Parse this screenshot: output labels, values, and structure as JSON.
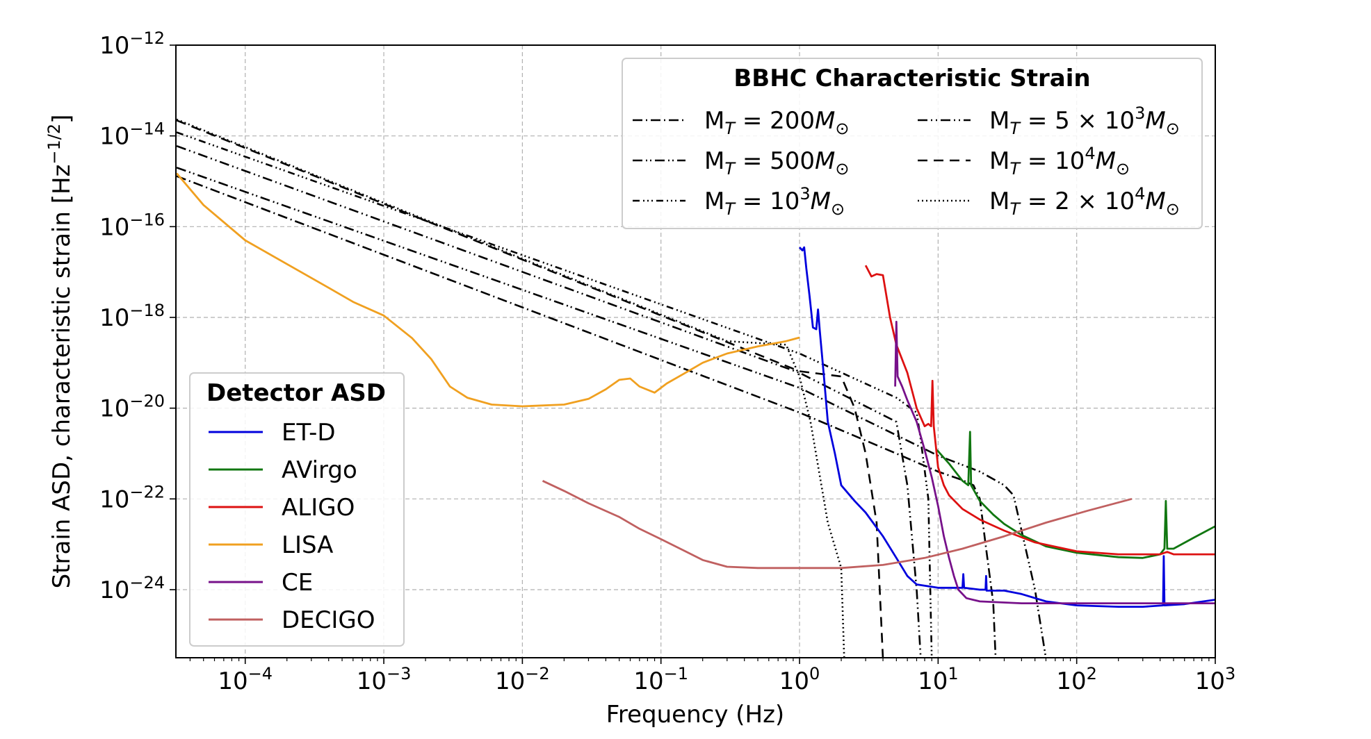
{
  "chart_data": {
    "type": "line",
    "x_scale": "log",
    "y_scale": "log",
    "xlim": [
      3.16e-05,
      1000
    ],
    "ylim": [
      3.16e-26,
      1e-12
    ],
    "xlabel": "Frequency (Hz)",
    "ylabel": "Strain ASD, characteristic strain [Hz",
    "ylabel_exp": "−1/2",
    "ylabel_close": "]",
    "grid": true,
    "x_ticks": [
      {
        "value": 0.0001,
        "base": "10",
        "exp": "−4"
      },
      {
        "value": 0.001,
        "base": "10",
        "exp": "−3"
      },
      {
        "value": 0.01,
        "base": "10",
        "exp": "−2"
      },
      {
        "value": 0.1,
        "base": "10",
        "exp": "−1"
      },
      {
        "value": 1,
        "base": "10",
        "exp": "0"
      },
      {
        "value": 10,
        "base": "10",
        "exp": "1"
      },
      {
        "value": 100,
        "base": "10",
        "exp": "2"
      },
      {
        "value": 1000,
        "base": "10",
        "exp": "3"
      }
    ],
    "y_ticks": [
      {
        "value": 1e-12,
        "base": "10",
        "exp": "−12"
      },
      {
        "value": 1e-14,
        "base": "10",
        "exp": "−14"
      },
      {
        "value": 1e-16,
        "base": "10",
        "exp": "−16"
      },
      {
        "value": 1e-18,
        "base": "10",
        "exp": "−18"
      },
      {
        "value": 1e-20,
        "base": "10",
        "exp": "−20"
      },
      {
        "value": 1e-22,
        "base": "10",
        "exp": "−22"
      },
      {
        "value": 1e-24,
        "base": "10",
        "exp": "−24"
      }
    ],
    "legend_detectors": {
      "title": "Detector ASD",
      "placement": "lower-left"
    },
    "legend_bbhc": {
      "title": "BBHC Characteristic Strain",
      "placement": "upper-right"
    },
    "detector_series": [
      {
        "name": "ET-D",
        "color": "#0000dd",
        "points": [
          [
            1.0,
            3.5e-17
          ],
          [
            1.05,
            3e-17
          ],
          [
            1.08,
            3.5e-17
          ],
          [
            1.12,
            1.2e-17
          ],
          [
            1.18,
            3e-18
          ],
          [
            1.25,
            6e-19
          ],
          [
            1.32,
            5.5e-19
          ],
          [
            1.36,
            1.5e-18
          ],
          [
            1.4,
            5e-19
          ],
          [
            1.5,
            5e-20
          ],
          [
            1.6,
            5e-21
          ],
          [
            1.8,
            1e-21
          ],
          [
            2.0,
            2e-22
          ],
          [
            2.5,
            9e-23
          ],
          [
            3,
            5e-23
          ],
          [
            4,
            1.5e-23
          ],
          [
            5,
            5e-24
          ],
          [
            6,
            2e-24
          ],
          [
            7,
            1.3e-24
          ],
          [
            10,
            1.1e-24
          ],
          [
            15,
            1.1e-24
          ],
          [
            15.2,
            2.2e-24
          ],
          [
            15.4,
            1.1e-24
          ],
          [
            20,
            1e-24
          ],
          [
            22,
            1e-24
          ],
          [
            22.2,
            2e-24
          ],
          [
            22.4,
            9.5e-25
          ],
          [
            30,
            9.5e-25
          ],
          [
            40,
            8e-25
          ],
          [
            60,
            5.5e-25
          ],
          [
            100,
            4.5e-25
          ],
          [
            200,
            4.2e-25
          ],
          [
            300,
            4.2e-25
          ],
          [
            420,
            4.5e-25
          ],
          [
            425,
            5.5e-24
          ],
          [
            430,
            4.5e-25
          ],
          [
            600,
            4.8e-25
          ],
          [
            1000,
            6e-25
          ]
        ]
      },
      {
        "name": "AVirgo",
        "color": "#117711",
        "points": [
          [
            9.8,
            1.2e-21
          ],
          [
            12,
            6e-22
          ],
          [
            15,
            2.5e-22
          ],
          [
            16.5,
            2e-22
          ],
          [
            17,
            3e-21
          ],
          [
            17.3,
            2e-22
          ],
          [
            20,
            9e-23
          ],
          [
            25,
            4.5e-23
          ],
          [
            30,
            2.8e-23
          ],
          [
            40,
            1.6e-23
          ],
          [
            60,
            9e-24
          ],
          [
            100,
            6.5e-24
          ],
          [
            200,
            5.2e-24
          ],
          [
            300,
            5e-24
          ],
          [
            400,
            6e-24
          ],
          [
            430,
            8e-24
          ],
          [
            440,
            9e-23
          ],
          [
            450,
            8e-24
          ],
          [
            500,
            8e-24
          ],
          [
            700,
            1.4e-23
          ],
          [
            1000,
            2.5e-23
          ]
        ]
      },
      {
        "name": "ALIGO",
        "color": "#dd1111",
        "points": [
          [
            3.0,
            1.4e-17
          ],
          [
            3.3,
            8e-18
          ],
          [
            3.6,
            9e-18
          ],
          [
            4.0,
            8.5e-18
          ],
          [
            4.5,
            1e-18
          ],
          [
            5,
            2.5e-19
          ],
          [
            6,
            6e-20
          ],
          [
            7,
            1e-20
          ],
          [
            8,
            4e-21
          ],
          [
            8.5,
            4.5e-21
          ],
          [
            8.9,
            4e-21
          ],
          [
            9.1,
            4e-20
          ],
          [
            9.3,
            4e-21
          ],
          [
            10,
            5e-22
          ],
          [
            11,
            2e-22
          ],
          [
            12,
            1.2e-22
          ],
          [
            15,
            6e-23
          ],
          [
            20,
            3.5e-23
          ],
          [
            30,
            2e-23
          ],
          [
            50,
            1.1e-23
          ],
          [
            100,
            7e-24
          ],
          [
            200,
            6e-24
          ],
          [
            400,
            6e-24
          ],
          [
            450,
            6.8e-24
          ],
          [
            500,
            6e-24
          ],
          [
            1000,
            6e-24
          ]
        ]
      },
      {
        "name": "LISA",
        "color": "#f0a020",
        "points": [
          [
            3.2e-05,
            1.5e-15
          ],
          [
            5e-05,
            3e-16
          ],
          [
            0.0001,
            5e-17
          ],
          [
            0.0002,
            1.5e-17
          ],
          [
            0.0004,
            4.5e-18
          ],
          [
            0.0006,
            2.2e-18
          ],
          [
            0.001,
            1.1e-18
          ],
          [
            0.0016,
            3.5e-19
          ],
          [
            0.0022,
            1.2e-19
          ],
          [
            0.003,
            3e-20
          ],
          [
            0.004,
            1.7e-20
          ],
          [
            0.006,
            1.2e-20
          ],
          [
            0.01,
            1.1e-20
          ],
          [
            0.02,
            1.2e-20
          ],
          [
            0.03,
            1.6e-20
          ],
          [
            0.04,
            2.6e-20
          ],
          [
            0.05,
            4.2e-20
          ],
          [
            0.06,
            4.5e-20
          ],
          [
            0.07,
            3e-20
          ],
          [
            0.09,
            2.2e-20
          ],
          [
            0.11,
            3.5e-20
          ],
          [
            0.15,
            6e-20
          ],
          [
            0.2,
            1e-19
          ],
          [
            0.3,
            1.6e-19
          ],
          [
            0.5,
            2.3e-19
          ],
          [
            0.8,
            3e-19
          ],
          [
            1.0,
            3.6e-19
          ]
        ]
      },
      {
        "name": "CE",
        "color": "#77118a",
        "points": [
          [
            4.9,
            3e-20
          ],
          [
            5.0,
            8e-19
          ],
          [
            5.1,
            5e-20
          ],
          [
            5.5,
            3e-20
          ],
          [
            6,
            1.5e-20
          ],
          [
            7,
            5e-21
          ],
          [
            8,
            1.2e-21
          ],
          [
            9,
            3e-22
          ],
          [
            10,
            7e-23
          ],
          [
            11,
            1.5e-23
          ],
          [
            12,
            5e-24
          ],
          [
            13,
            2e-24
          ],
          [
            14,
            1e-24
          ],
          [
            16,
            6.5e-25
          ],
          [
            20,
            5.5e-25
          ],
          [
            40,
            5e-25
          ],
          [
            100,
            5e-25
          ],
          [
            300,
            5e-25
          ],
          [
            1000,
            5e-25
          ]
        ]
      },
      {
        "name": "DECIGO",
        "color": "#c06060",
        "points": [
          [
            0.014,
            2.5e-22
          ],
          [
            0.02,
            1.5e-22
          ],
          [
            0.03,
            8e-23
          ],
          [
            0.05,
            4e-23
          ],
          [
            0.07,
            2.2e-23
          ],
          [
            0.1,
            1.3e-23
          ],
          [
            0.15,
            7e-24
          ],
          [
            0.2,
            4.5e-24
          ],
          [
            0.3,
            3.2e-24
          ],
          [
            0.5,
            3e-24
          ],
          [
            1,
            3e-24
          ],
          [
            2,
            3e-24
          ],
          [
            4,
            3.5e-24
          ],
          [
            8,
            5e-24
          ],
          [
            15,
            8e-24
          ],
          [
            30,
            1.5e-23
          ],
          [
            60,
            3e-23
          ],
          [
            120,
            5.5e-23
          ],
          [
            250,
            1e-22
          ]
        ]
      }
    ],
    "bbhc_series": [
      {
        "name": "200",
        "label_value": "200",
        "dash": "14,5,2,5",
        "points": [
          [
            3.2e-05,
            1.3e-15
          ],
          [
            1,
            8e-21
          ],
          [
            5,
            1e-21
          ],
          [
            10,
            4e-22
          ],
          [
            15,
            2.6e-22
          ],
          [
            18,
            2e-22
          ],
          [
            20,
            1e-22
          ],
          [
            22,
            1e-23
          ],
          [
            25,
            5e-25
          ],
          [
            26,
            3e-26
          ]
        ]
      },
      {
        "name": "500",
        "label_value": "500",
        "dash": "14,5,2,4,2,5",
        "points": [
          [
            3.2e-05,
            2e-15
          ],
          [
            1,
            2.8e-20
          ],
          [
            10,
            9e-22
          ],
          [
            20,
            4e-22
          ],
          [
            30,
            2e-22
          ],
          [
            35,
            1.2e-22
          ],
          [
            40,
            2e-23
          ],
          [
            50,
            1e-24
          ],
          [
            60,
            3e-26
          ]
        ]
      },
      {
        "name": "1000",
        "label_value": "10",
        "label_exp": "3",
        "dash": "10,5,2,4,2,4,2,5",
        "points": [
          [
            3.2e-05,
            1.2e-14
          ],
          [
            1,
            1.6e-19
          ],
          [
            5,
            1.7e-20
          ],
          [
            7,
            8e-21
          ],
          [
            7.5,
            2e-21
          ],
          [
            8.5,
            1e-22
          ],
          [
            9,
            3e-26
          ]
        ]
      },
      {
        "name": "5000",
        "label_value": "5 × 10",
        "label_exp": "3",
        "dash": "14,5,2,5,2,5",
        "points": [
          [
            3.2e-05,
            6e-15
          ],
          [
            1,
            6e-20
          ],
          [
            5,
            5e-21
          ],
          [
            6,
            2e-22
          ],
          [
            7,
            1e-24
          ],
          [
            7.5,
            3e-26
          ]
        ]
      },
      {
        "name": "10000",
        "label_value": "10",
        "label_exp": "4",
        "dash": "14,9",
        "points": [
          [
            3.2e-05,
            2.2e-14
          ],
          [
            1,
            6.5e-20
          ],
          [
            2,
            5e-20
          ],
          [
            2.5,
            1e-20
          ],
          [
            3,
            1e-21
          ],
          [
            3.6,
            3e-23
          ],
          [
            4,
            3e-26
          ]
        ]
      },
      {
        "name": "20000",
        "label_value": "2 × 10",
        "label_exp": "4",
        "dash": "2,4",
        "points": [
          [
            3.2e-05,
            2.3e-14
          ],
          [
            0.3,
            3e-19
          ],
          [
            0.8,
            2.5e-19
          ],
          [
            1.0,
            5e-20
          ],
          [
            1.2,
            5e-21
          ],
          [
            1.6,
            3e-23
          ],
          [
            2,
            3e-24
          ],
          [
            2.1,
            3e-26
          ]
        ]
      }
    ]
  }
}
